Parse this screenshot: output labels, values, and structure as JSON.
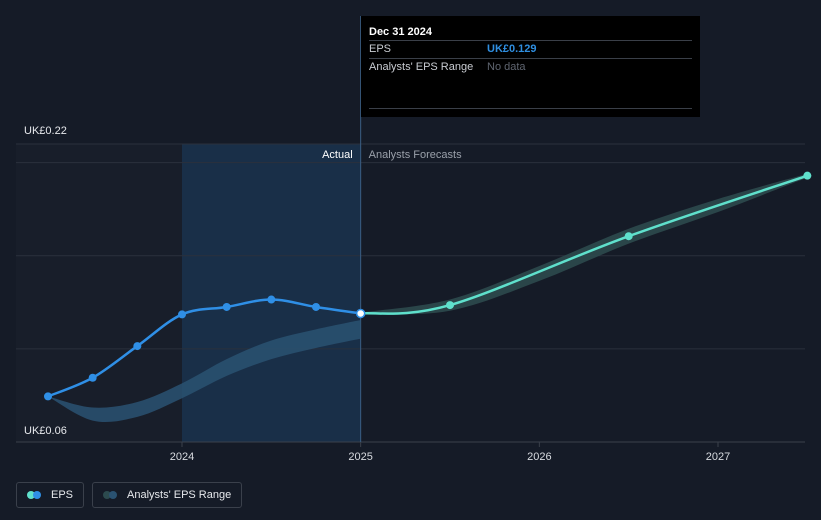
{
  "chart_data": {
    "type": "line",
    "y_min_label": "UK£0.06",
    "y_max_label": "UK£0.22",
    "ylim": [
      0.06,
      0.22
    ],
    "x_ticks": [
      "2024",
      "2025",
      "2026",
      "2027"
    ],
    "region_labels": {
      "actual": "Actual",
      "forecast": "Analysts Forecasts"
    },
    "series": [
      {
        "name": "EPS",
        "color": "#2f8fe6",
        "points": [
          {
            "x": 2023.25,
            "y": 0.0845
          },
          {
            "x": 2023.5,
            "y": 0.0945
          },
          {
            "x": 2023.75,
            "y": 0.1115
          },
          {
            "x": 2024.0,
            "y": 0.1285
          },
          {
            "x": 2024.25,
            "y": 0.1325
          },
          {
            "x": 2024.5,
            "y": 0.1365
          },
          {
            "x": 2024.75,
            "y": 0.1325
          },
          {
            "x": 2025.0,
            "y": 0.129
          }
        ]
      },
      {
        "name": "EPS forecast",
        "color": "#5fe0cc",
        "points": [
          {
            "x": 2025.0,
            "y": 0.129
          },
          {
            "x": 2025.5,
            "y": 0.1335
          },
          {
            "x": 2026.5,
            "y": 0.1705
          },
          {
            "x": 2027.5,
            "y": 0.203
          }
        ]
      }
    ],
    "range_band_history": [
      {
        "x": 2023.25,
        "low": 0.0845,
        "high": 0.0845
      },
      {
        "x": 2023.5,
        "low": 0.0715,
        "high": 0.0785
      },
      {
        "x": 2023.75,
        "low": 0.0735,
        "high": 0.0815
      },
      {
        "x": 2024.0,
        "low": 0.0835,
        "high": 0.0915
      },
      {
        "x": 2024.25,
        "low": 0.0955,
        "high": 0.1045
      },
      {
        "x": 2024.5,
        "low": 0.1045,
        "high": 0.1145
      },
      {
        "x": 2024.75,
        "low": 0.1105,
        "high": 0.1205
      },
      {
        "x": 2025.0,
        "low": 0.1155,
        "high": 0.1255
      }
    ],
    "range_band_forecast": [
      {
        "x": 2025.0,
        "low": 0.1285,
        "high": 0.1295
      },
      {
        "x": 2025.5,
        "low": 0.1305,
        "high": 0.1365
      },
      {
        "x": 2026.0,
        "low": 0.1465,
        "high": 0.1545
      },
      {
        "x": 2026.5,
        "low": 0.1665,
        "high": 0.1745
      },
      {
        "x": 2027.0,
        "low": 0.1835,
        "high": 0.1905
      },
      {
        "x": 2027.5,
        "low": 0.202,
        "high": 0.204
      }
    ],
    "gridlines": [
      0.06,
      0.11,
      0.16,
      0.21,
      0.22
    ],
    "highlighted_point": {
      "x": 2025.0,
      "y": 0.129
    }
  },
  "tooltip": {
    "date": "Dec 31 2024",
    "eps_label": "EPS",
    "eps_value": "UK£0.129",
    "range_label": "Analysts' EPS Range",
    "range_value": "No data"
  },
  "legend": {
    "eps_label": "EPS",
    "range_label": "Analysts' EPS Range"
  },
  "colors": {
    "background": "#151b27",
    "eps_line": "#2f8fe6",
    "forecast_line": "#5fe0cc",
    "band": "#2a5272",
    "forecast_band": "#2c4a4e",
    "highlight_region": "#192f48",
    "past_region": "#181e2a"
  }
}
